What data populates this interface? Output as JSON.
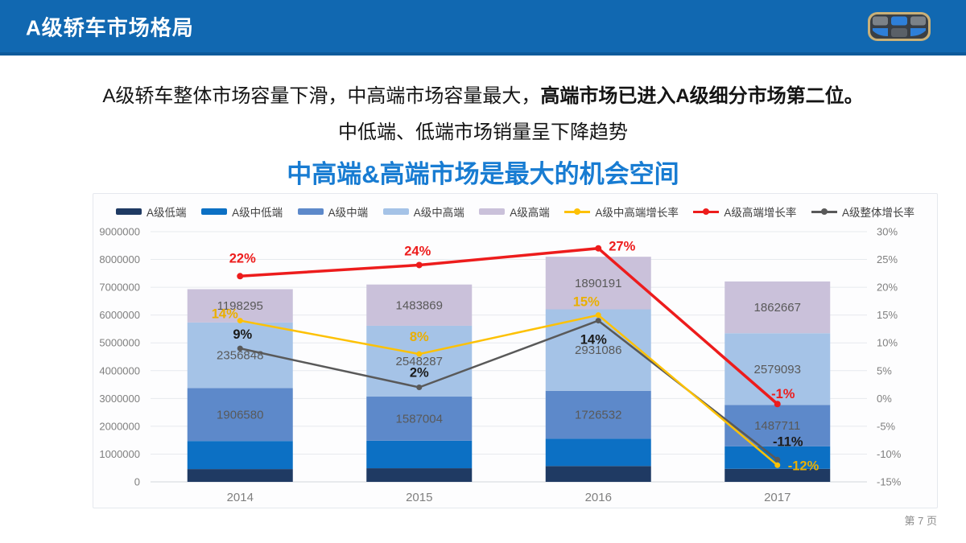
{
  "slide": {
    "header": {
      "title": "A级轿车市场格局"
    },
    "intro_line1_regular": "A级轿车整体市场容量下滑，中高端市场容量最大，",
    "intro_line1_bold": "高端市场已进入A级细分市场第二位。",
    "intro_line2": "中低端、低端市场销量呈下降趋势",
    "headline": "中高端&高端市场是最大的机会空间",
    "page_label": "第 7 页"
  },
  "colors": {
    "header_bg": "#1168b1",
    "header_border": "#0d5a9b",
    "headline_blue": "#187cd2",
    "axis_text": "#7f7f7f",
    "bar_value_label": "#595959",
    "gridline": "#e7eaee",
    "zero_line": "#d3d7dc"
  },
  "chart_data": {
    "type": "bar",
    "subtype": "stacked-bars-with-growth-lines",
    "title": "中高端&高端市场是最大的机会空间",
    "categories": [
      "2014",
      "2015",
      "2016",
      "2017"
    ],
    "bar_series": [
      {
        "name": "A级低端",
        "color": "#1f3a63",
        "show_labels": false,
        "values": [
          460000,
          490000,
          570000,
          470000
        ]
      },
      {
        "name": "A级中低端",
        "color": "#0c70c4",
        "show_labels": false,
        "values": [
          1010000,
          990000,
          980000,
          810000
        ]
      },
      {
        "name": "A级中端",
        "color": "#5d89ca",
        "show_labels": true,
        "values": [
          1906580,
          1587004,
          1726532,
          1487711
        ]
      },
      {
        "name": "A级中高端",
        "color": "#a5c3e7",
        "show_labels": true,
        "values": [
          2356848,
          2548287,
          2931086,
          2579093
        ]
      },
      {
        "name": "A级高端",
        "color": "#cac1da",
        "show_labels": true,
        "values": [
          1198295,
          1483869,
          1890191,
          1862667
        ]
      }
    ],
    "line_series": [
      {
        "name": "A级中高端增长率",
        "color": "#fdc104",
        "label_color": "#eaaf00",
        "values_pct": [
          14,
          8,
          15,
          -12
        ],
        "labels": [
          "14%",
          "8%",
          "15%",
          "-12%"
        ],
        "label_offsets": [
          [
            -19,
            -3,
            "middle"
          ],
          [
            0,
            -16,
            "middle"
          ],
          [
            -15,
            -11,
            "middle"
          ],
          [
            13,
            6,
            "start"
          ]
        ]
      },
      {
        "name": "A级高端增长率",
        "color": "#ed1c1c",
        "label_color": "#ed1c1c",
        "values_pct": [
          22,
          24,
          27,
          -1
        ],
        "labels": [
          "22%",
          "24%",
          "27%",
          "-1%"
        ],
        "label_offsets": [
          [
            3,
            -17,
            "middle"
          ],
          [
            -2,
            -12,
            "middle"
          ],
          [
            13,
            3,
            "start"
          ],
          [
            7,
            -7,
            "middle"
          ]
        ]
      },
      {
        "name": "A级整体增长率",
        "color": "#595959",
        "label_color": "#1a1a1a",
        "values_pct": [
          9,
          2,
          14,
          -11
        ],
        "labels": [
          "9%",
          "2%",
          "14%",
          "-11%"
        ],
        "label_offsets": [
          [
            3,
            -12,
            "middle"
          ],
          [
            0,
            -13,
            "middle"
          ],
          [
            -6,
            29,
            "middle"
          ],
          [
            13,
            -17,
            "middle"
          ]
        ]
      }
    ],
    "left_axis": {
      "min": 0,
      "max": 9000000,
      "step": 1000000,
      "tick_labels": [
        "0",
        "1000000",
        "2000000",
        "3000000",
        "4000000",
        "5000000",
        "6000000",
        "7000000",
        "8000000",
        "9000000"
      ]
    },
    "right_axis": {
      "min": -15,
      "max": 30,
      "step": 5,
      "tick_labels": [
        "-15%",
        "-10%",
        "-5%",
        "0%",
        "5%",
        "10%",
        "15%",
        "20%",
        "25%",
        "30%"
      ]
    },
    "legend_position": "top",
    "grid": "horizontal"
  }
}
